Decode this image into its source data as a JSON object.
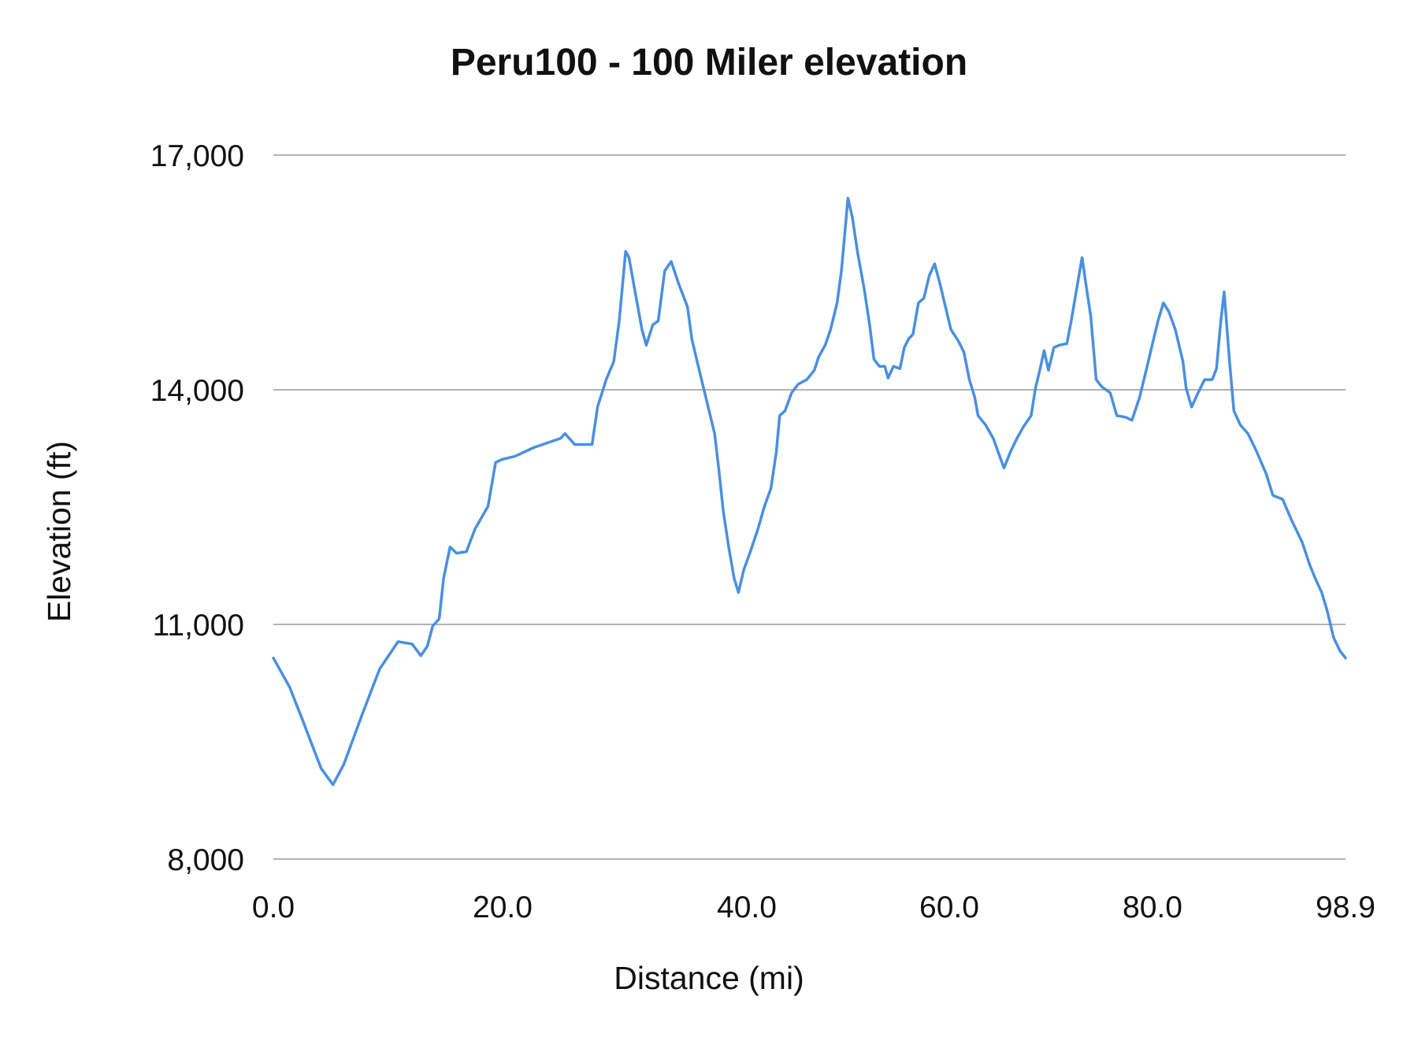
{
  "chart_data": {
    "type": "line",
    "title": "Peru100 - 100 Miler elevation",
    "xlabel": "Distance (mi)",
    "ylabel": "Elevation (ft)",
    "xlim": [
      0,
      98.9
    ],
    "ylim": [
      8000,
      17000
    ],
    "x_tick_labels": [
      "0.0",
      "20.0",
      "40.0",
      "60.0",
      "80.0",
      "98.9"
    ],
    "y_ticks": [
      8000,
      11000,
      14000,
      17000
    ],
    "y_tick_labels": [
      "8,000",
      "11,000",
      "14,000",
      "17,000"
    ],
    "grid": "horizontal",
    "legend": "none",
    "line_color": "#4a8fe0",
    "grid_color": "#b3b3b3",
    "series": [
      {
        "x": [
          0.0,
          1.5,
          2.8,
          3.6,
          4.4,
          5.5,
          6.5,
          8.2,
          9.8,
          11.5,
          12.8,
          13.6,
          14.2,
          14.7,
          15.3,
          15.7,
          16.3,
          16.9,
          17.8,
          18.6,
          19.8,
          20.5,
          21.1,
          22.3,
          24.0,
          26.5,
          26.9,
          27.8,
          29.4,
          29.9,
          30.7,
          31.4,
          31.9,
          32.5,
          32.8,
          33.4,
          34.0,
          34.4,
          35.0,
          35.5,
          36.1,
          36.7,
          37.4,
          38.2,
          38.6,
          39.2,
          40.0,
          40.7,
          41.1,
          41.5,
          42.0,
          42.5,
          42.9,
          43.4,
          44.0,
          44.7,
          45.3,
          45.9,
          46.4,
          46.7,
          47.2,
          47.8,
          48.4,
          49.2,
          49.9,
          50.3,
          50.9,
          51.4,
          52.0,
          52.4,
          53.0,
          53.4,
          53.9,
          54.5,
          55.0,
          55.4,
          55.9,
          56.4,
          56.7,
          57.2,
          57.8,
          58.2,
          58.6,
          59.0,
          59.5,
          60.0,
          60.5,
          61.0,
          61.5,
          62.0,
          62.5,
          63.2,
          63.7,
          64.2,
          64.7,
          65.0,
          65.7,
          66.4,
          67.0,
          67.4,
          68.0,
          68.6,
          69.2,
          69.9,
          70.3,
          70.7,
          71.1,
          71.5,
          72.0,
          72.5,
          73.2,
          73.6,
          74.1,
          74.6,
          74.9,
          75.4,
          75.9,
          76.4,
          77.2,
          77.8,
          78.6,
          79.2,
          79.9,
          80.6,
          81.1,
          81.6,
          82.1,
          82.6,
          83.2,
          83.9,
          84.2,
          84.7,
          85.3,
          85.9,
          86.6,
          87.0,
          87.4,
          87.7,
          88.2,
          88.6,
          89.2,
          89.9,
          90.7,
          91.6,
          92.2,
          93.1,
          93.9,
          94.9,
          95.6,
          96.1,
          96.7,
          97.2,
          97.8,
          98.4,
          98.9
        ],
        "y": [
          10570,
          10200,
          9740,
          9450,
          9160,
          8950,
          9210,
          9850,
          10430,
          10780,
          10750,
          10600,
          10720,
          10980,
          11070,
          11590,
          11990,
          11910,
          11930,
          12220,
          12510,
          13070,
          13110,
          13150,
          13260,
          13380,
          13440,
          13300,
          13300,
          13780,
          14130,
          14360,
          14880,
          15770,
          15690,
          15230,
          14770,
          14570,
          14830,
          14880,
          15520,
          15640,
          15350,
          15060,
          14650,
          14300,
          13840,
          13440,
          12970,
          12450,
          11990,
          11590,
          11410,
          11700,
          11930,
          12220,
          12510,
          12740,
          13210,
          13670,
          13730,
          13960,
          14070,
          14130,
          14250,
          14420,
          14570,
          14770,
          15110,
          15520,
          16450,
          16210,
          15750,
          15290,
          14830,
          14390,
          14300,
          14300,
          14150,
          14300,
          14270,
          14540,
          14650,
          14710,
          15110,
          15170,
          15460,
          15610,
          15350,
          15060,
          14770,
          14620,
          14480,
          14130,
          13900,
          13670,
          13550,
          13380,
          13150,
          13000,
          13210,
          13380,
          13530,
          13670,
          14020,
          14250,
          14500,
          14250,
          14540,
          14570,
          14590,
          14880,
          15290,
          15690,
          15400,
          14940,
          14130,
          14040,
          13960,
          13670,
          13650,
          13610,
          13900,
          14300,
          14590,
          14880,
          15110,
          15000,
          14770,
          14360,
          14020,
          13780,
          13960,
          14130,
          14130,
          14270,
          14880,
          15250,
          14360,
          13730,
          13550,
          13440,
          13210,
          12920,
          12650,
          12600,
          12340,
          12050,
          11760,
          11590,
          11410,
          11180,
          10830,
          10660,
          10570
        ]
      }
    ]
  }
}
